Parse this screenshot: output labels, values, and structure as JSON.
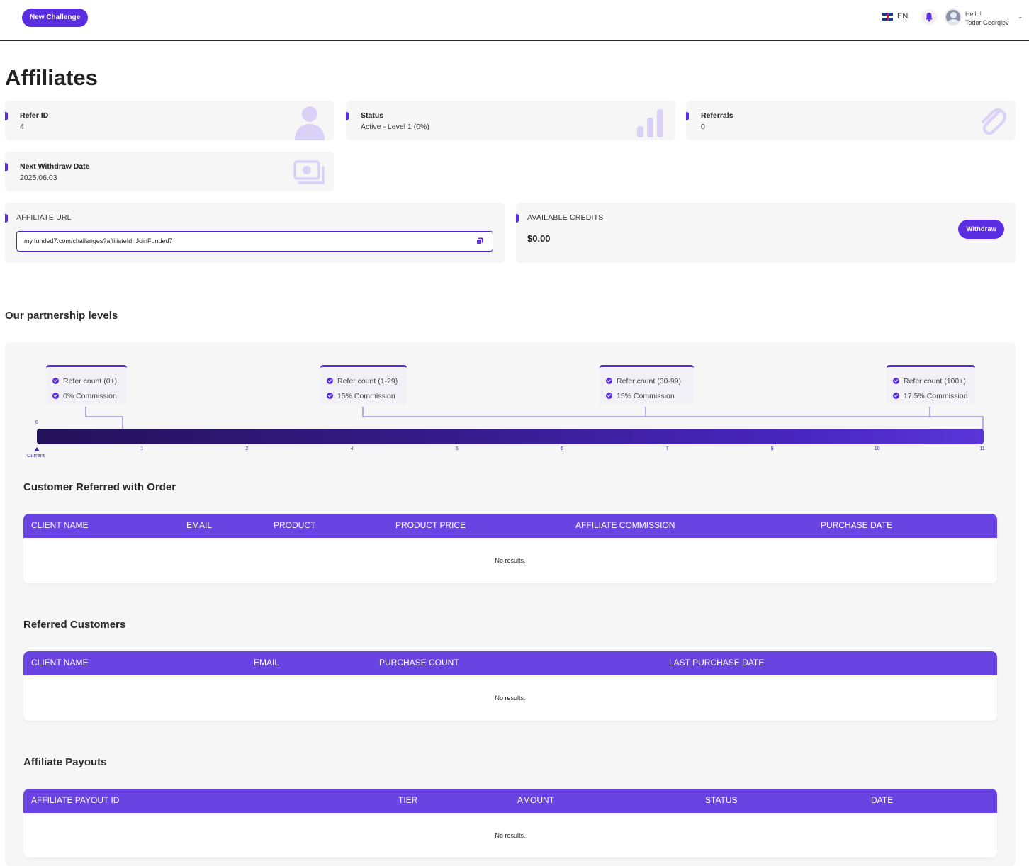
{
  "header": {
    "new_challenge_label": "New Challenge",
    "language": "EN",
    "greeting": "Hello!",
    "user_name": "Todor Georgiev"
  },
  "page": {
    "title": "Affiliates"
  },
  "stats": {
    "refer_id": {
      "label": "Refer ID",
      "value": "4"
    },
    "status": {
      "label": "Status",
      "value": "Active - Level 1 (0%)"
    },
    "referrals": {
      "label": "Referrals",
      "value": "0"
    },
    "next_withdraw": {
      "label": "Next Withdraw Date",
      "value": "2025.06.03"
    }
  },
  "affiliate_url": {
    "label": "AFFILIATE URL",
    "value": "my.funded7.com/challenges?affiliateId=JoinFunded7"
  },
  "credits": {
    "label": "AVAILABLE CREDITS",
    "value": "$0.00",
    "withdraw_label": "Withdraw"
  },
  "partnership": {
    "title": "Our partnership levels",
    "levels": [
      {
        "refer": "Refer count (0+)",
        "commission": "0% Commission"
      },
      {
        "refer": "Refer count (1-29)",
        "commission": "15% Commission"
      },
      {
        "refer": "Refer count (30-99)",
        "commission": "15% Commission"
      },
      {
        "refer": "Refer count (100+)",
        "commission": "17.5% Commission"
      }
    ],
    "start_tick": "0",
    "ticks": [
      "1",
      "2",
      "4",
      "5",
      "6",
      "7",
      "9",
      "10",
      "11"
    ],
    "current_label": "Current",
    "current_progress": 0
  },
  "tables": {
    "orders": {
      "title": "Customer Referred with Order",
      "columns": [
        "CLIENT NAME",
        "EMAIL",
        "PRODUCT",
        "PRODUCT PRICE",
        "AFFILIATE COMMISSION",
        "PURCHASE DATE"
      ],
      "empty": "No results."
    },
    "customers": {
      "title": "Referred Customers",
      "columns": [
        "CLIENT NAME",
        "EMAIL",
        "PURCHASE COUNT",
        "LAST PURCHASE DATE"
      ],
      "empty": "No results."
    },
    "payouts": {
      "title": "Affiliate Payouts",
      "columns": [
        "AFFILIATE PAYOUT ID",
        "TIER",
        "AMOUNT",
        "STATUS",
        "DATE"
      ],
      "empty": "No results."
    }
  },
  "colors": {
    "accent": "#5a2ee0",
    "table_header": "#6a44e3",
    "card_bg": "#f6f6f6"
  }
}
